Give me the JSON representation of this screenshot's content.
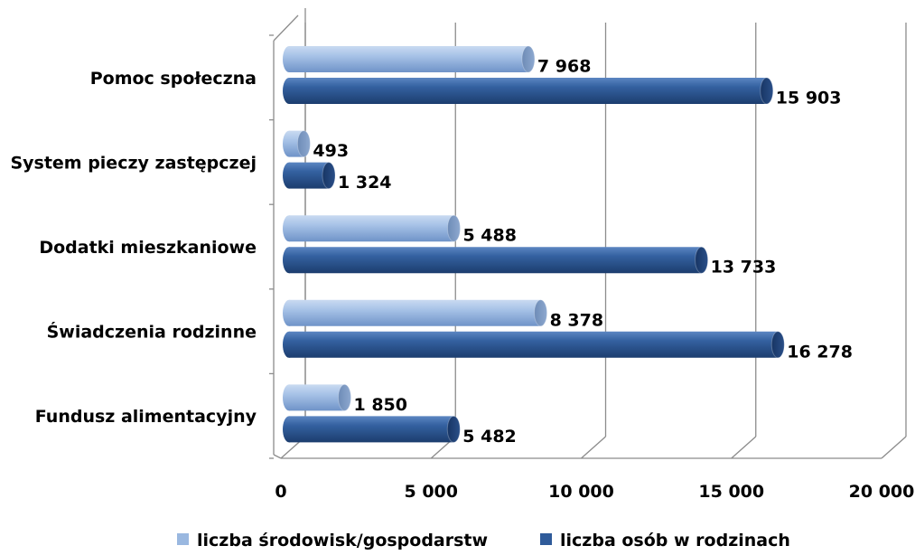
{
  "chart_data": {
    "type": "bar",
    "orientation": "horizontal",
    "three_d": true,
    "categories": [
      "Pomoc społeczna",
      "System pieczy zastępczej",
      "Dodatki mieszkaniowe",
      "Świadczenia rodzinne",
      "Fundusz alimentacyjny"
    ],
    "series": [
      {
        "name": "liczba środowisk/gospodarstw",
        "color": "#9ab8e0",
        "values": [
          7968,
          493,
          5488,
          8378,
          1850
        ],
        "labels": [
          "7 968",
          "493",
          "5 488",
          "8 378",
          "1 850"
        ]
      },
      {
        "name": "liczba osób w rodzinach",
        "color": "#2f5b9a",
        "values": [
          15903,
          1324,
          13733,
          16278,
          5482
        ],
        "labels": [
          "15 903",
          "1 324",
          "13 733",
          "16 278",
          "5 482"
        ]
      }
    ],
    "xlim": [
      0,
      20000
    ],
    "x_ticks": [
      0,
      5000,
      10000,
      15000,
      20000
    ],
    "x_tick_labels": [
      "0",
      "5 000",
      "10 000",
      "15 000",
      "20 000"
    ],
    "grid": true,
    "legend_position": "bottom"
  }
}
